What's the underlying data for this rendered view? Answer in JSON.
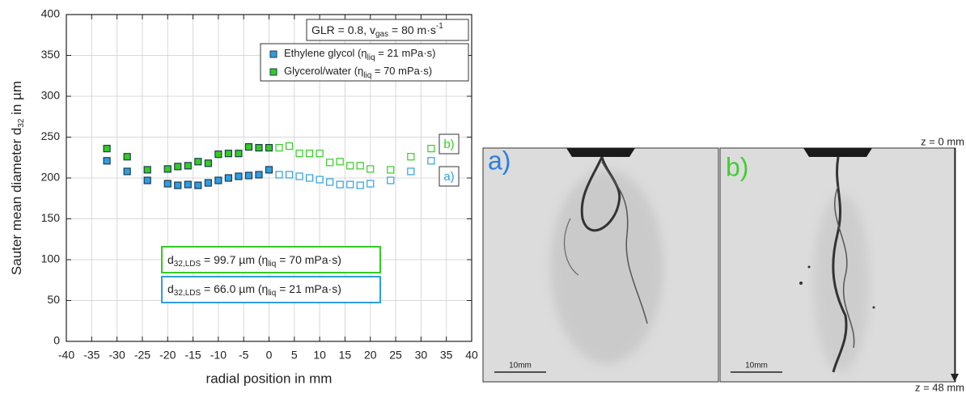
{
  "chart_data": {
    "type": "scatter",
    "ylabel": [
      "Sauter mean diameter d",
      "32",
      " in µm"
    ],
    "xlabel": "radial position in mm",
    "xlim": [
      -40,
      40
    ],
    "xticks": [
      -40,
      -35,
      -30,
      -25,
      -20,
      -15,
      -10,
      -5,
      0,
      5,
      10,
      15,
      20,
      25,
      30,
      35,
      40
    ],
    "ylim": [
      0,
      400
    ],
    "yticks": [
      0,
      50,
      100,
      150,
      200,
      250,
      300,
      350,
      400
    ],
    "grid": true,
    "series": [
      {
        "name": [
          "Ethylene glycol (η",
          "liq",
          " = 21 mPa·s)"
        ],
        "color": "#2f9ee0",
        "x": [
          -32,
          -28,
          -24,
          -20,
          -18,
          -16,
          -14,
          -12,
          -10,
          -8,
          -6,
          -4,
          -2,
          0,
          2,
          4,
          6,
          8,
          10,
          12,
          14,
          16,
          18,
          20,
          24,
          28,
          32
        ],
        "values": [
          221,
          208,
          197,
          193,
          191,
          192,
          191,
          194,
          197,
          200,
          202,
          203,
          204,
          210,
          204,
          204,
          202,
          200,
          198,
          195,
          192,
          192,
          191,
          193,
          197,
          208,
          221
        ]
      },
      {
        "name": [
          "Glycerol/water (η",
          "liq",
          " = 70 mPa·s)"
        ],
        "color": "#33cc22",
        "x": [
          -32,
          -28,
          -24,
          -20,
          -18,
          -16,
          -14,
          -12,
          -10,
          -8,
          -6,
          -4,
          -2,
          0,
          2,
          4,
          6,
          8,
          10,
          12,
          14,
          16,
          18,
          20,
          24,
          28,
          32
        ],
        "values": [
          236,
          226,
          210,
          211,
          214,
          215,
          220,
          218,
          229,
          230,
          230,
          238,
          237,
          237,
          237,
          239,
          230,
          230,
          230,
          219,
          220,
          215,
          215,
          211,
          210,
          226,
          236
        ]
      }
    ],
    "legend": "upper right",
    "annotations": {
      "conditions": [
        "GLR = 0.8, v",
        "gas",
        " = 80 m·s",
        "-1"
      ],
      "label_b": "b)",
      "label_a": "a)",
      "lds_glycerol": [
        "d",
        "32,LDS",
        " = 99.7 µm (η",
        "liq",
        " = 70 mPa·s)"
      ],
      "lds_glycol": [
        "d",
        "32,LDS",
        " = 66.0 µm (η",
        "liq",
        " = 21 mPa·s)"
      ]
    }
  },
  "panels": [
    {
      "label": "a)",
      "scale": "10mm"
    },
    {
      "label": "b)",
      "scale": "10mm"
    }
  ],
  "z_top": "z = 0 mm",
  "z_bottom": "z = 48 mm"
}
